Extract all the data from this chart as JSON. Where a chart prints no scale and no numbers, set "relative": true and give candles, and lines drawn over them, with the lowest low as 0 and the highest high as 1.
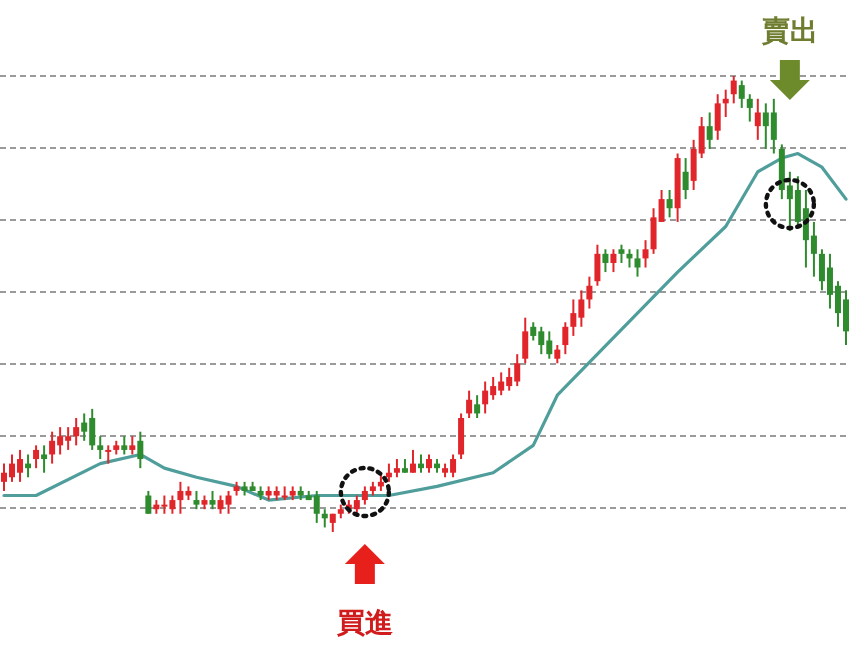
{
  "chart_data": {
    "type": "candlestick",
    "relative": true,
    "grid": "y",
    "annotations": [
      "買進",
      "賣出"
    ],
    "categories": [
      null,
      null,
      null,
      null,
      null,
      null,
      null,
      null,
      null,
      null,
      null,
      null,
      null,
      null,
      null,
      null,
      null,
      null,
      null,
      null,
      null,
      null,
      null,
      null,
      null,
      null,
      null,
      null,
      null,
      null,
      null,
      null,
      null,
      null,
      null,
      null,
      null,
      null,
      null,
      null,
      null,
      null,
      null,
      null,
      null,
      null,
      null,
      null,
      null,
      null,
      null,
      null,
      null,
      null,
      null,
      null,
      null,
      null,
      null,
      null,
      null,
      null,
      null,
      null,
      null,
      null,
      null,
      null,
      null,
      null,
      null,
      null,
      null,
      null,
      null,
      null,
      null,
      null,
      null,
      null,
      null,
      null,
      null,
      null,
      null,
      null,
      null,
      null,
      null,
      null,
      null,
      null,
      null,
      null,
      null,
      null,
      null,
      null,
      null,
      null,
      null,
      null,
      null,
      null,
      null,
      null
    ],
    "ohlc": [
      [
        0.11,
        0.15,
        0.09,
        0.13
      ],
      [
        0.12,
        0.17,
        0.11,
        0.15
      ],
      [
        0.13,
        0.18,
        0.11,
        0.16
      ],
      [
        0.15,
        0.17,
        0.12,
        0.14
      ],
      [
        0.16,
        0.19,
        0.14,
        0.18
      ],
      [
        0.17,
        0.19,
        0.13,
        0.16
      ],
      [
        0.17,
        0.22,
        0.15,
        0.2
      ],
      [
        0.19,
        0.23,
        0.17,
        0.21
      ],
      [
        0.2,
        0.23,
        0.18,
        0.21
      ],
      [
        0.21,
        0.25,
        0.19,
        0.23
      ],
      [
        0.24,
        0.26,
        0.2,
        0.22
      ],
      [
        0.25,
        0.27,
        0.18,
        0.19
      ],
      [
        0.19,
        0.21,
        0.16,
        0.18
      ],
      [
        0.18,
        0.19,
        0.15,
        0.18
      ],
      [
        0.18,
        0.2,
        0.17,
        0.19
      ],
      [
        0.19,
        0.21,
        0.17,
        0.18
      ],
      [
        0.18,
        0.21,
        0.17,
        0.19
      ],
      [
        0.2,
        0.22,
        0.14,
        0.16
      ],
      [
        0.08,
        0.09,
        0.04,
        0.04
      ],
      [
        0.05,
        0.07,
        0.04,
        0.06
      ],
      [
        0.06,
        0.08,
        0.04,
        0.06
      ],
      [
        0.05,
        0.08,
        0.04,
        0.07
      ],
      [
        0.07,
        0.11,
        0.04,
        0.09
      ],
      [
        0.08,
        0.1,
        0.07,
        0.09
      ],
      [
        0.07,
        0.09,
        0.05,
        0.06
      ],
      [
        0.06,
        0.08,
        0.05,
        0.07
      ],
      [
        0.07,
        0.09,
        0.05,
        0.06
      ],
      [
        0.05,
        0.08,
        0.04,
        0.07
      ],
      [
        0.06,
        0.09,
        0.04,
        0.08
      ],
      [
        0.09,
        0.11,
        0.08,
        0.1
      ],
      [
        0.1,
        0.11,
        0.08,
        0.09
      ],
      [
        0.1,
        0.11,
        0.09,
        0.09
      ],
      [
        0.09,
        0.1,
        0.07,
        0.08
      ],
      [
        0.08,
        0.1,
        0.07,
        0.09
      ],
      [
        0.08,
        0.1,
        0.07,
        0.09
      ],
      [
        0.08,
        0.1,
        0.07,
        0.08
      ],
      [
        0.08,
        0.1,
        0.07,
        0.09
      ],
      [
        0.09,
        0.1,
        0.07,
        0.08
      ],
      [
        0.08,
        0.09,
        0.07,
        0.07
      ],
      [
        0.08,
        0.09,
        0.02,
        0.04
      ],
      [
        0.04,
        0.05,
        0.01,
        0.03
      ],
      [
        0.02,
        0.04,
        0,
        0.04
      ],
      [
        0.04,
        0.06,
        0.03,
        0.05
      ],
      [
        0.05,
        0.07,
        0.04,
        0.06
      ],
      [
        0.05,
        0.08,
        0.04,
        0.07
      ],
      [
        0.07,
        0.1,
        0.06,
        0.09
      ],
      [
        0.09,
        0.11,
        0.08,
        0.1
      ],
      [
        0.1,
        0.13,
        0.09,
        0.11
      ],
      [
        0.12,
        0.15,
        0.11,
        0.13
      ],
      [
        0.13,
        0.16,
        0.12,
        0.14
      ],
      [
        0.14,
        0.16,
        0.13,
        0.13
      ],
      [
        0.13,
        0.18,
        0.13,
        0.15
      ],
      [
        0.15,
        0.17,
        0.13,
        0.14
      ],
      [
        0.14,
        0.17,
        0.13,
        0.16
      ],
      [
        0.15,
        0.16,
        0.13,
        0.14
      ],
      [
        0.13,
        0.15,
        0.12,
        0.14
      ],
      [
        0.13,
        0.17,
        0.12,
        0.16
      ],
      [
        0.17,
        0.26,
        0.16,
        0.25
      ],
      [
        0.26,
        0.31,
        0.25,
        0.29
      ],
      [
        0.28,
        0.3,
        0.25,
        0.26
      ],
      [
        0.28,
        0.33,
        0.26,
        0.31
      ],
      [
        0.3,
        0.34,
        0.29,
        0.32
      ],
      [
        0.31,
        0.35,
        0.3,
        0.33
      ],
      [
        0.32,
        0.36,
        0.31,
        0.34
      ],
      [
        0.33,
        0.39,
        0.32,
        0.37
      ],
      [
        0.38,
        0.47,
        0.37,
        0.44
      ],
      [
        0.45,
        0.46,
        0.42,
        0.43
      ],
      [
        0.44,
        0.45,
        0.39,
        0.41
      ],
      [
        0.42,
        0.44,
        0.38,
        0.39
      ],
      [
        0.38,
        0.41,
        0.37,
        0.4
      ],
      [
        0.41,
        0.46,
        0.39,
        0.45
      ],
      [
        0.45,
        0.51,
        0.43,
        0.48
      ],
      [
        0.47,
        0.53,
        0.45,
        0.51
      ],
      [
        0.51,
        0.56,
        0.49,
        0.54
      ],
      [
        0.55,
        0.63,
        0.54,
        0.61
      ],
      [
        0.61,
        0.62,
        0.57,
        0.59
      ],
      [
        0.59,
        0.62,
        0.57,
        0.61
      ],
      [
        0.62,
        0.63,
        0.59,
        0.61
      ],
      [
        0.61,
        0.62,
        0.58,
        0.6
      ],
      [
        0.6,
        0.62,
        0.56,
        0.58
      ],
      [
        0.6,
        0.64,
        0.58,
        0.62
      ],
      [
        0.62,
        0.71,
        0.61,
        0.69
      ],
      [
        0.68,
        0.75,
        0.68,
        0.73
      ],
      [
        0.73,
        0.75,
        0.69,
        0.71
      ],
      [
        0.71,
        0.83,
        0.68,
        0.82
      ],
      [
        0.79,
        0.82,
        0.73,
        0.75
      ],
      [
        0.77,
        0.86,
        0.75,
        0.84
      ],
      [
        0.83,
        0.91,
        0.82,
        0.89
      ],
      [
        0.89,
        0.92,
        0.84,
        0.86
      ],
      [
        0.88,
        0.96,
        0.86,
        0.94
      ],
      [
        0.94,
        0.97,
        0.91,
        0.95
      ],
      [
        0.96,
        1.0,
        0.94,
        0.99
      ],
      [
        0.98,
        0.99,
        0.93,
        0.95
      ],
      [
        0.95,
        0.96,
        0.9,
        0.93
      ],
      [
        0.89,
        0.95,
        0.86,
        0.92
      ],
      [
        0.92,
        0.94,
        0.84,
        0.89
      ],
      [
        0.92,
        0.95,
        0.83,
        0.86
      ],
      [
        0.84,
        0.85,
        0.73,
        0.75
      ],
      [
        0.76,
        0.79,
        0.66,
        0.73
      ],
      [
        0.75,
        0.78,
        0.67,
        0.68
      ],
      [
        0.71,
        0.75,
        0.58,
        0.64
      ],
      [
        0.65,
        0.68,
        0.56,
        0.61
      ],
      [
        0.61,
        0.62,
        0.53,
        0.55
      ],
      [
        0.58,
        0.61,
        0.49,
        0.52
      ],
      [
        0.54,
        0.55,
        0.45,
        0.48
      ],
      [
        0.51,
        0.53,
        0.41,
        0.44
      ]
    ],
    "series": [
      {
        "type": "line",
        "color": "#4f9e9b",
        "values": [
          0.08,
          null,
          null,
          null,
          0.08,
          null,
          null,
          null,
          null,
          null,
          null,
          null,
          0.15,
          null,
          null,
          null,
          null,
          0.17,
          null,
          null,
          0.14,
          null,
          null,
          null,
          0.12,
          null,
          null,
          null,
          null,
          0.1,
          null,
          null,
          null,
          0.07,
          null,
          null,
          null,
          null,
          null,
          0.08,
          null,
          null,
          null,
          null,
          null,
          null,
          null,
          null,
          0.08,
          null,
          null,
          null,
          null,
          null,
          0.1,
          null,
          null,
          null,
          null,
          null,
          null,
          0.13,
          null,
          null,
          null,
          null,
          0.19,
          null,
          null,
          0.3,
          null,
          null,
          null,
          null,
          0.39,
          null,
          null,
          null,
          null,
          0.48,
          null,
          null,
          null,
          null,
          0.57,
          null,
          null,
          null,
          null,
          null,
          0.67,
          null,
          null,
          null,
          0.79,
          null,
          null,
          0.82,
          null,
          0.83,
          null,
          null,
          0.8,
          null,
          null,
          0.73
        ]
      }
    ]
  }
}
